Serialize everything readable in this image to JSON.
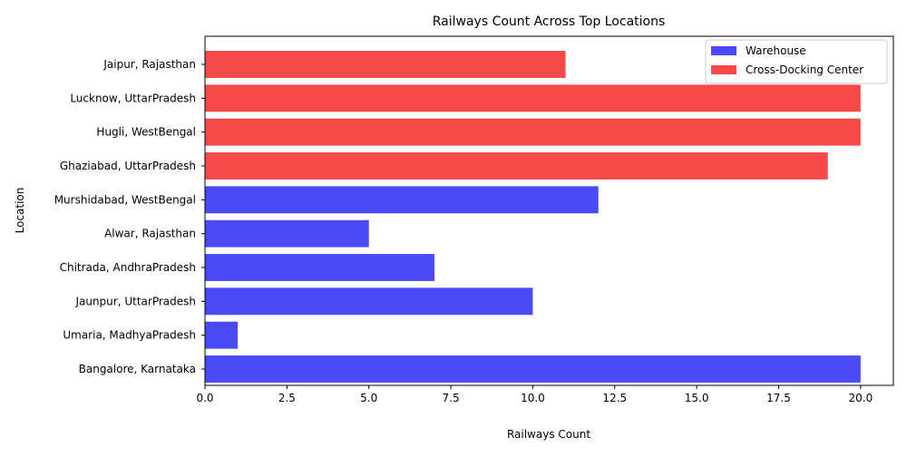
{
  "chart_data": {
    "type": "bar",
    "orientation": "horizontal",
    "title": "Railways Count Across Top Locations",
    "xlabel": "Railways Count",
    "ylabel": "Location",
    "xlim": [
      0,
      21
    ],
    "xticks": [
      0,
      2.5,
      5,
      7.5,
      10,
      12.5,
      15,
      17.5,
      20
    ],
    "xtick_labels": [
      "0.0",
      "2.5",
      "5.0",
      "7.5",
      "10.0",
      "12.5",
      "15.0",
      "17.5",
      "20.0"
    ],
    "categories": [
      "Bangalore, Karnataka",
      "Umaria, MadhyaPradesh",
      "Jaunpur, UttarPradesh",
      "Chitrada, AndhraPradesh",
      "Alwar, Rajasthan",
      "Murshidabad, WestBengal",
      "Ghaziabad, UttarPradesh",
      "Hugli, WestBengal",
      "Lucknow, UttarPradesh",
      "Jaipur, Rajasthan"
    ],
    "series": [
      {
        "name": "Warehouse",
        "color": "#4a4af6",
        "values": [
          20,
          1,
          10,
          7,
          5,
          12,
          null,
          null,
          null,
          null
        ]
      },
      {
        "name": "Cross-Docking Center",
        "color": "#f64a4a",
        "values": [
          null,
          null,
          null,
          null,
          null,
          null,
          19,
          20,
          20,
          11
        ]
      }
    ],
    "grid": false,
    "legend_position": "top-right"
  }
}
